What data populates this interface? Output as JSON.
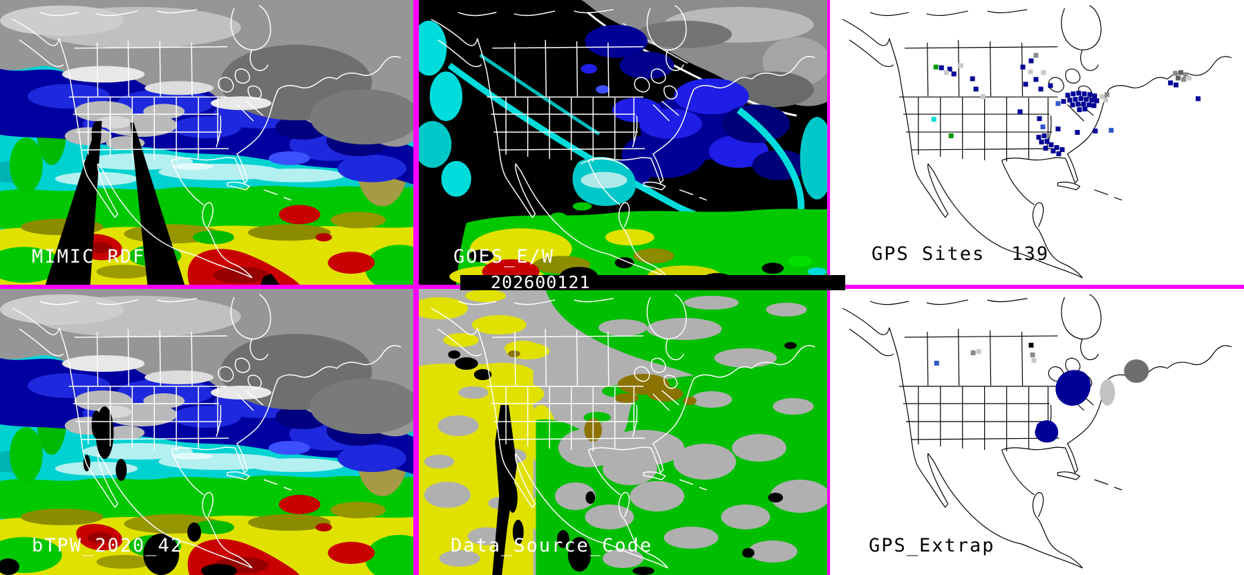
{
  "timestamp": "202600121",
  "panels": {
    "mimic": {
      "label": "MIMIC RDF"
    },
    "goes": {
      "label": "GOES_E/W"
    },
    "gps_sites": {
      "label": "GPS Sites",
      "count": "139"
    },
    "btpw": {
      "label": "bTPW_2020_42"
    },
    "data_source": {
      "label": "Data_Source_Code"
    },
    "gps_extrap": {
      "label": "GPS_Extrap"
    }
  },
  "colors": {
    "divider": "#ff00ff",
    "timestamp_bar_bg": "#000000",
    "timestamp_text": "#ffffff",
    "label_light": "#ffffff",
    "label_dark": "#000000",
    "tpw_gray_cloud": "#969696",
    "tpw_navy": "#0000a0",
    "tpw_blue": "#1e28dc",
    "tpw_cyan": "#00d2d2",
    "tpw_green": "#00c800",
    "tpw_olive": "#8c8c00",
    "tpw_yellow": "#e1e100",
    "tpw_red": "#c80000",
    "source_gray": "#b0b0b0",
    "source_yellow": "#e1e100",
    "source_green": "#00be00",
    "source_olive": "#8c7300"
  },
  "marker_colors": {
    "n": "#000096",
    "b": "#3355cc",
    "g": "#8a8a8a",
    "dg": "#5f5f5f",
    "lg": "#c8c8c8",
    "c": "#00dddd",
    "gr": "#009900",
    "k": "#000000"
  },
  "markers": {
    "gps_sites": [
      [
        150,
        94,
        "gr"
      ],
      [
        158,
        95,
        "n"
      ],
      [
        170,
        97,
        "n"
      ],
      [
        176,
        104,
        "n"
      ],
      [
        186,
        92,
        "lg"
      ],
      [
        165,
        102,
        "lg"
      ],
      [
        203,
        111,
        "n"
      ],
      [
        208,
        126,
        "n"
      ],
      [
        218,
        137,
        "lg"
      ],
      [
        288,
        85,
        "n"
      ],
      [
        295,
        77,
        "g"
      ],
      [
        276,
        94,
        "n"
      ],
      [
        287,
        101,
        "lg"
      ],
      [
        306,
        102,
        "lg"
      ],
      [
        295,
        112,
        "n"
      ],
      [
        280,
        119,
        "n"
      ],
      [
        316,
        121,
        "n"
      ],
      [
        302,
        126,
        "n"
      ],
      [
        327,
        147,
        "b"
      ],
      [
        335,
        144,
        "n"
      ],
      [
        341,
        135,
        "n"
      ],
      [
        349,
        133,
        "n"
      ],
      [
        357,
        132,
        "n"
      ],
      [
        365,
        133,
        "n"
      ],
      [
        373,
        134,
        "n"
      ],
      [
        380,
        136,
        "n"
      ],
      [
        344,
        142,
        "n"
      ],
      [
        352,
        141,
        "n"
      ],
      [
        360,
        140,
        "n"
      ],
      [
        368,
        141,
        "n"
      ],
      [
        376,
        142,
        "n"
      ],
      [
        383,
        143,
        "n"
      ],
      [
        348,
        149,
        "n"
      ],
      [
        356,
        148,
        "n"
      ],
      [
        364,
        148,
        "n"
      ],
      [
        372,
        149,
        "n"
      ],
      [
        379,
        150,
        "n"
      ],
      [
        358,
        156,
        "n"
      ],
      [
        366,
        155,
        "n"
      ],
      [
        391,
        137,
        "lg"
      ],
      [
        398,
        134,
        "g"
      ],
      [
        396,
        142,
        "lg"
      ],
      [
        497,
        103,
        "g"
      ],
      [
        505,
        102,
        "dg"
      ],
      [
        512,
        105,
        "g"
      ],
      [
        501,
        110,
        "dg"
      ],
      [
        509,
        112,
        "g"
      ],
      [
        517,
        110,
        "lg"
      ],
      [
        490,
        117,
        "n"
      ],
      [
        498,
        120,
        "n"
      ],
      [
        530,
        140,
        "n"
      ],
      [
        272,
        159,
        "n"
      ],
      [
        300,
        169,
        "n"
      ],
      [
        305,
        181,
        "b"
      ],
      [
        327,
        184,
        "n"
      ],
      [
        355,
        189,
        "n"
      ],
      [
        381,
        187,
        "n"
      ],
      [
        404,
        186,
        "b"
      ],
      [
        299,
        196,
        "n"
      ],
      [
        307,
        194,
        "n"
      ],
      [
        303,
        203,
        "n"
      ],
      [
        311,
        202,
        "n"
      ],
      [
        317,
        207,
        "n"
      ],
      [
        325,
        211,
        "n"
      ],
      [
        333,
        214,
        "n"
      ],
      [
        320,
        216,
        "n"
      ],
      [
        309,
        212,
        "n"
      ],
      [
        328,
        220,
        "n"
      ],
      [
        147,
        170,
        "c"
      ],
      [
        172,
        194,
        "gr"
      ]
    ],
    "gps_extrap": [
      [
        151,
        104,
        "b"
      ],
      [
        204,
        89,
        "g"
      ],
      [
        212,
        87,
        "lg"
      ],
      [
        288,
        78,
        "k"
      ],
      [
        290,
        92,
        "g"
      ],
      [
        292,
        100,
        "lg"
      ]
    ]
  }
}
